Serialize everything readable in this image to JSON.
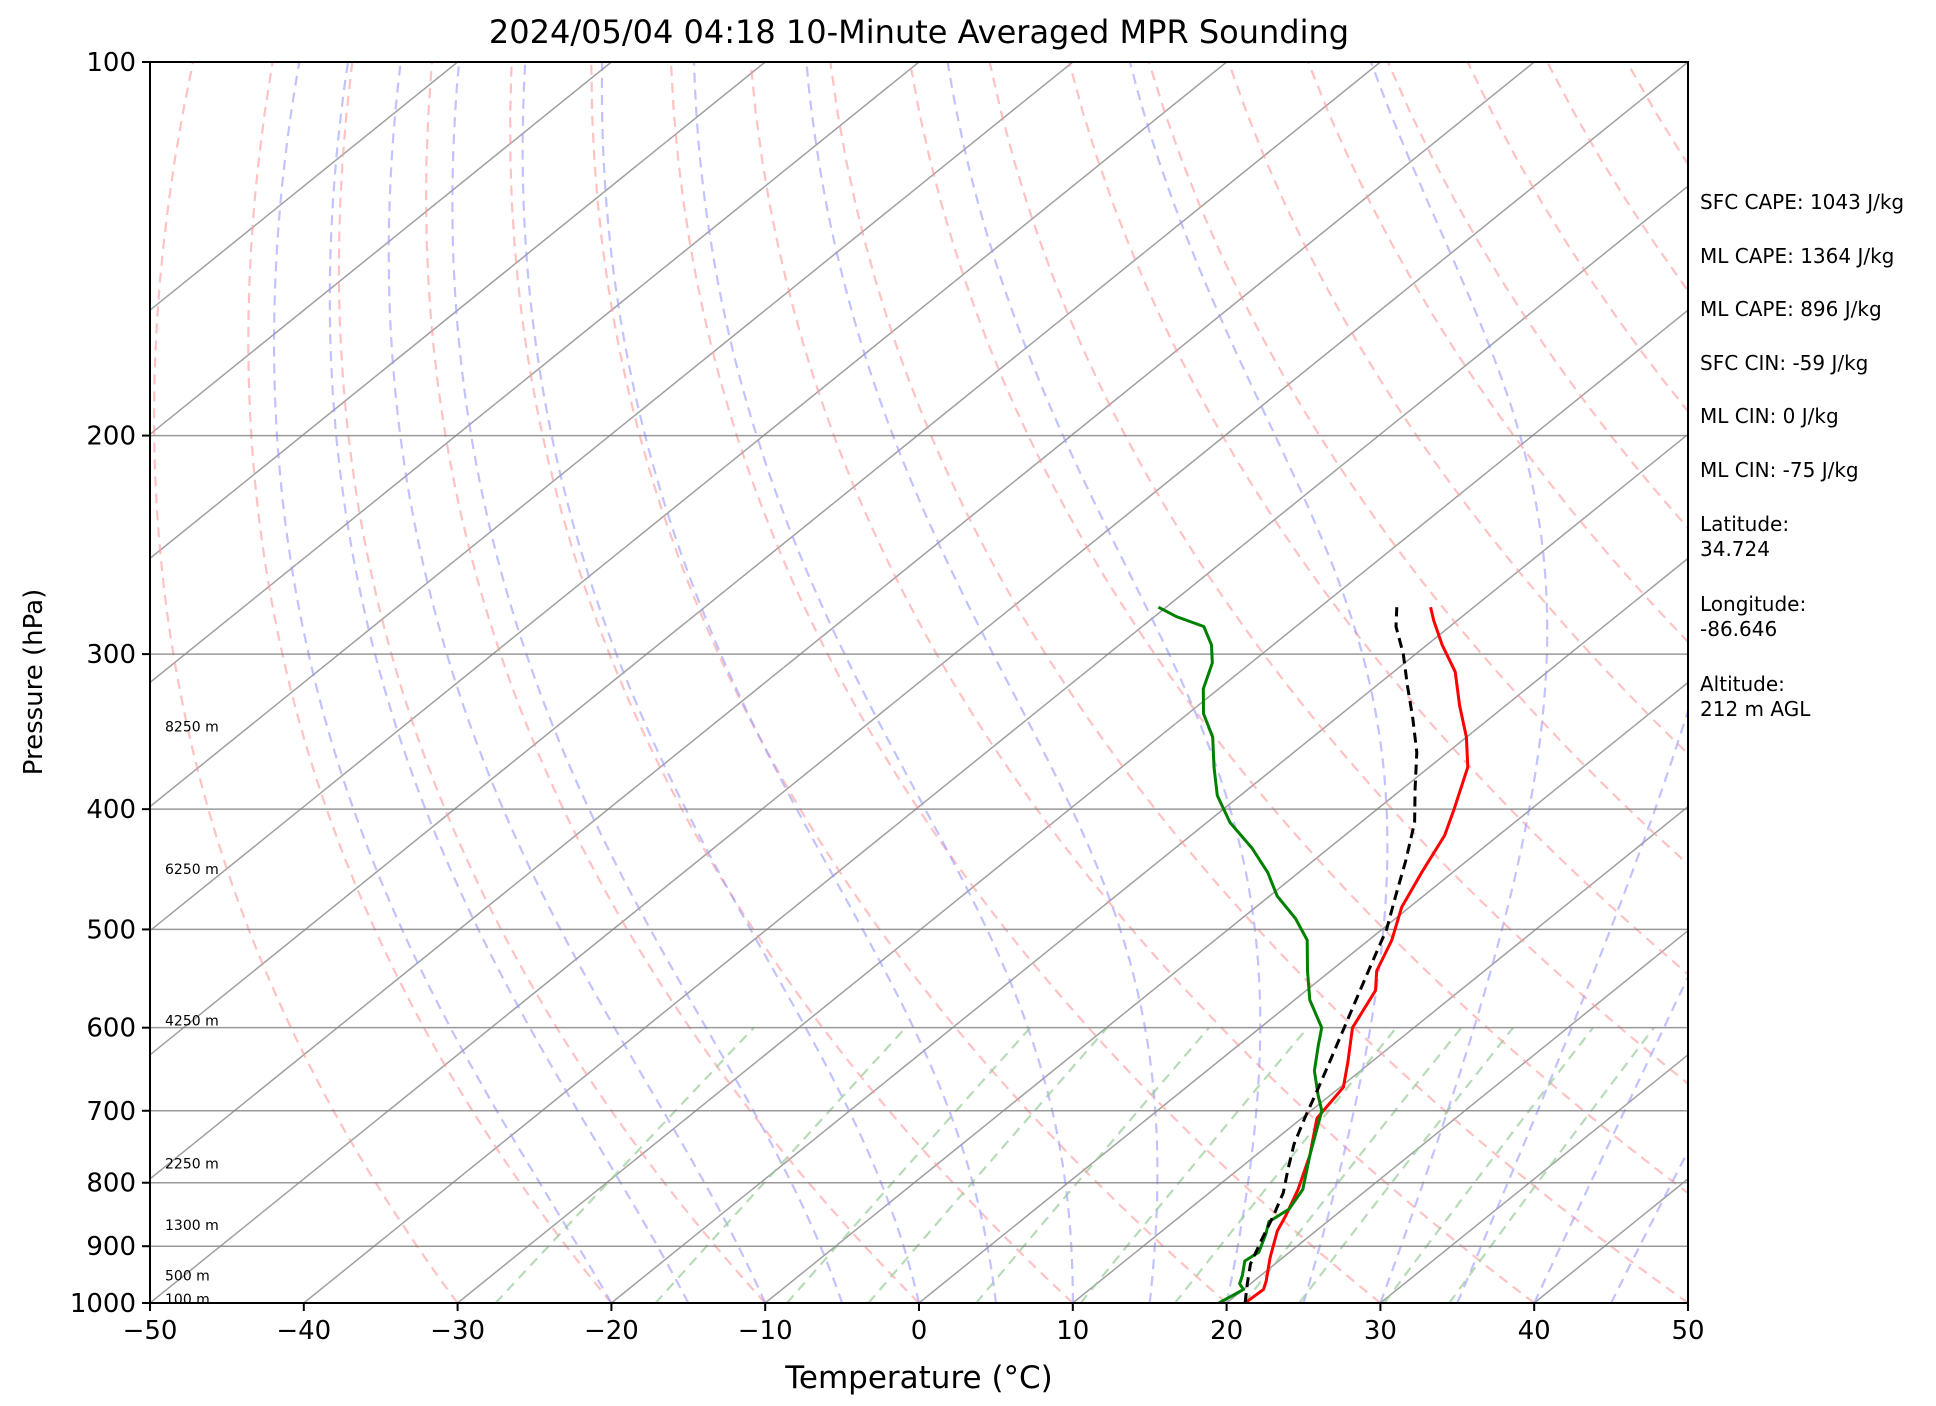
{
  "chart_data": {
    "type": "line",
    "title": "2024/05/04 04:18 10-Minute Averaged MPR Sounding",
    "xlabel": "Temperature (°C)",
    "ylabel": "Pressure (hPa)",
    "xlim": [
      -50,
      50
    ],
    "ylim": [
      1000,
      100
    ],
    "y_scale": "log",
    "x_ticks": [
      "−50",
      "−40",
      "−30",
      "−20",
      "−10",
      "0",
      "10",
      "20",
      "30",
      "40",
      "50"
    ],
    "y_ticks": [
      "100",
      "200",
      "300",
      "400",
      "500",
      "600",
      "700",
      "800",
      "900",
      "1000"
    ],
    "height_labels": [
      {
        "text": "100 m",
        "p": 993
      },
      {
        "text": "500 m",
        "p": 950
      },
      {
        "text": "1300 m",
        "p": 865
      },
      {
        "text": "2250 m",
        "p": 772
      },
      {
        "text": "4250 m",
        "p": 592
      },
      {
        "text": "6250 m",
        "p": 447
      },
      {
        "text": "8250 m",
        "p": 343
      }
    ],
    "colors": {
      "temperature": "#ff0000",
      "dewpoint": "#008000",
      "parcel": "#000000",
      "isotherm": "#808080",
      "dry_adiabat": "#ff9999",
      "moist_adiabat": "#9999ff",
      "mixing_ratio": "#99cc99",
      "isobar": "#808080"
    },
    "series": [
      {
        "key": "temperature",
        "points": [
          [
            21.2,
            1000
          ],
          [
            21.3,
            975
          ],
          [
            20.8,
            960
          ],
          [
            19.2,
            920
          ],
          [
            17.5,
            875
          ],
          [
            16.8,
            850
          ],
          [
            15.5,
            810
          ],
          [
            13.5,
            760
          ],
          [
            11.0,
            710
          ],
          [
            10.2,
            670
          ],
          [
            8.5,
            640
          ],
          [
            6.0,
            600
          ],
          [
            4.5,
            560
          ],
          [
            3.0,
            540
          ],
          [
            1.5,
            510
          ],
          [
            -0.5,
            480
          ],
          [
            -2.0,
            450
          ],
          [
            -3.5,
            420
          ],
          [
            -5.0,
            400
          ],
          [
            -7.5,
            370
          ],
          [
            -10.0,
            350
          ],
          [
            -13.0,
            330
          ],
          [
            -16.0,
            310
          ],
          [
            -19.0,
            295
          ],
          [
            -21.5,
            282
          ],
          [
            -22.8,
            275
          ]
        ]
      },
      {
        "key": "dewpoint",
        "points": [
          [
            19.5,
            1000
          ],
          [
            19.8,
            985
          ],
          [
            20.0,
            975
          ],
          [
            19.3,
            965
          ],
          [
            18.8,
            950
          ],
          [
            17.8,
            925
          ],
          [
            18.0,
            910
          ],
          [
            17.0,
            880
          ],
          [
            16.2,
            860
          ],
          [
            16.5,
            840
          ],
          [
            15.8,
            810
          ],
          [
            13.5,
            760
          ],
          [
            10.7,
            700
          ],
          [
            9.2,
            680
          ],
          [
            7.0,
            650
          ],
          [
            5.2,
            620
          ],
          [
            4.0,
            600
          ],
          [
            1.0,
            570
          ],
          [
            -1.5,
            540
          ],
          [
            -4.0,
            510
          ],
          [
            -6.5,
            490
          ],
          [
            -9.5,
            470
          ],
          [
            -12.0,
            450
          ],
          [
            -15.0,
            430
          ],
          [
            -18.5,
            410
          ],
          [
            -21.5,
            390
          ],
          [
            -24.0,
            370
          ],
          [
            -26.5,
            350
          ],
          [
            -29.0,
            335
          ],
          [
            -31.0,
            320
          ],
          [
            -32.5,
            305
          ],
          [
            -34.0,
            295
          ],
          [
            -36.0,
            285
          ],
          [
            -38.5,
            280
          ],
          [
            -40.5,
            275
          ]
        ]
      },
      {
        "key": "parcel",
        "points": [
          [
            21.2,
            1000
          ],
          [
            19.8,
            965
          ],
          [
            18.4,
            930
          ],
          [
            17.2,
            890
          ],
          [
            16.0,
            850
          ],
          [
            14.8,
            815
          ],
          [
            13.2,
            780
          ],
          [
            11.6,
            745
          ],
          [
            10.2,
            710
          ],
          [
            8.8,
            675
          ],
          [
            7.3,
            640
          ],
          [
            5.7,
            605
          ],
          [
            4.0,
            570
          ],
          [
            2.2,
            535
          ],
          [
            0.3,
            500
          ],
          [
            -1.8,
            470
          ],
          [
            -4.0,
            440
          ],
          [
            -6.5,
            410
          ],
          [
            -9.2,
            385
          ],
          [
            -12.0,
            360
          ],
          [
            -15.0,
            338
          ],
          [
            -18.0,
            318
          ],
          [
            -20.8,
            300
          ],
          [
            -23.5,
            285
          ],
          [
            -25.0,
            275
          ]
        ]
      }
    ]
  },
  "stats": [
    "SFC CAPE: 1043 J/kg",
    "ML CAPE: 1364 J/kg",
    "ML CAPE: 896 J/kg",
    "SFC CIN: -59 J/kg",
    "ML CIN: 0 J/kg",
    "ML CIN: -75 J/kg"
  ],
  "location": {
    "latitude_label": "Latitude:",
    "latitude": "34.724",
    "longitude_label": "Longitude:",
    "longitude": "-86.646",
    "altitude_label": "Altitude:",
    "altitude": "212 m AGL"
  }
}
